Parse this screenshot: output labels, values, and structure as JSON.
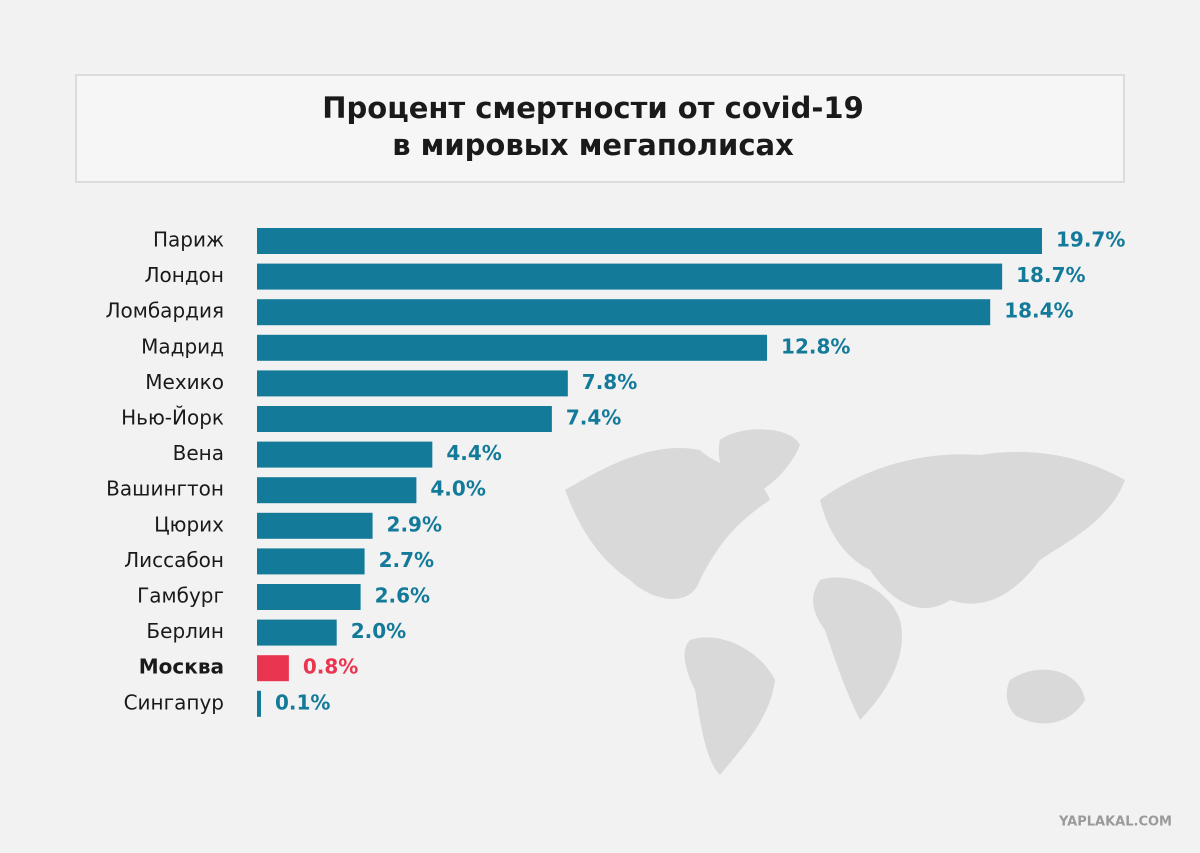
{
  "chart_data": {
    "type": "bar",
    "orientation": "horizontal",
    "title": [
      "Процент смертности от covid-19",
      "в мировых мегаполисах"
    ],
    "categories": [
      "Париж",
      "Лондон",
      "Ломбардия",
      "Мадрид",
      "Мехико",
      "Нью-Йорк",
      "Вена",
      "Вашингтон",
      "Цюрих",
      "Лиссабон",
      "Гамбург",
      "Берлин",
      "Москва",
      "Сингапур"
    ],
    "values": [
      19.7,
      18.7,
      18.4,
      12.8,
      7.8,
      7.4,
      4.4,
      4.0,
      2.9,
      2.7,
      2.6,
      2.0,
      0.8,
      0.1
    ],
    "value_labels": [
      "19.7%",
      "18.7%",
      "18.4%",
      "12.8%",
      "7.8%",
      "7.4%",
      "4.4%",
      "4.0%",
      "2.9%",
      "2.7%",
      "2.6%",
      "2.0%",
      "0.8%",
      "0.1%"
    ],
    "color": "#137a99",
    "colors": [
      "#137a99",
      "#137a99",
      "#137a99",
      "#137a99",
      "#137a99",
      "#137a99",
      "#137a99",
      "#137a99",
      "#137a99",
      "#137a99",
      "#137a99",
      "#137a99",
      "#ea3550",
      "#137a99"
    ],
    "watermark": "YAPLAKAL.COM"
  }
}
